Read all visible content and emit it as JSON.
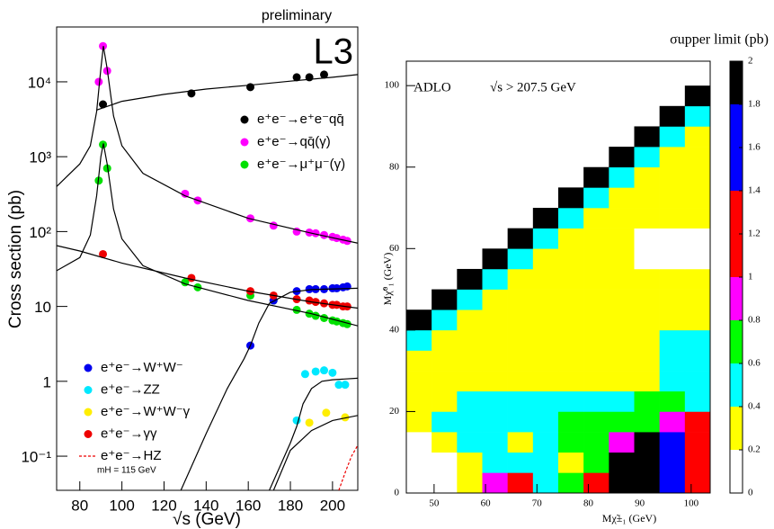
{
  "chart_data": [
    {
      "type": "scatter",
      "annotations": [
        "preliminary",
        "L3",
        "mH = 115 GeV"
      ],
      "xlabel": "√s (GeV)",
      "ylabel": "Cross section (pb)",
      "xlim": [
        69,
        212
      ],
      "ylim": [
        0.035,
        54000
      ],
      "log_y": true,
      "xticks": [
        80,
        100,
        120,
        140,
        160,
        180,
        200
      ],
      "yticks": [
        {
          "value": 0.1,
          "label": "10⁻¹"
        },
        1,
        10,
        {
          "value": 100,
          "label": "10²"
        },
        {
          "value": 1000,
          "label": "10³"
        },
        {
          "value": 10000,
          "label": "10⁴"
        }
      ],
      "series": [
        {
          "name": "e⁺e⁻→e⁺e⁻qq̄",
          "color": "#000000",
          "mode": "markers",
          "legend": "upper right",
          "x": [
            91,
            133,
            161,
            183,
            189,
            196
          ],
          "values": [
            5000,
            7000,
            8500,
            11500,
            11500,
            12500
          ]
        },
        {
          "name": "e⁺e⁻→qq̄(γ)",
          "color": "#ff00ff",
          "mode": "markers",
          "legend": "upper right",
          "x": [
            89,
            91,
            93,
            130,
            136,
            161,
            172,
            183,
            189,
            192,
            196,
            200,
            202,
            205,
            207
          ],
          "values": [
            10000,
            30000,
            14000,
            320,
            260,
            150,
            120,
            100,
            97,
            95,
            90,
            85,
            82,
            78,
            75
          ]
        },
        {
          "name": "e⁺e⁻→μ⁺μ⁻(γ)",
          "color": "#00e000",
          "mode": "markers",
          "legend": "upper right",
          "x": [
            89,
            91,
            93,
            130,
            136,
            161,
            172,
            183,
            189,
            192,
            196,
            200,
            202,
            205,
            207
          ],
          "values": [
            480,
            1450,
            700,
            21,
            18,
            14,
            12,
            9,
            8,
            7.5,
            7,
            6.5,
            6.3,
            6,
            5.8
          ]
        },
        {
          "name": "e⁺e⁻→W⁺W⁻",
          "color": "#0000ee",
          "mode": "markers",
          "legend": "lower left",
          "x": [
            161,
            172,
            183,
            189,
            192,
            196,
            200,
            202,
            205,
            207
          ],
          "values": [
            3,
            12,
            16,
            17,
            17,
            17,
            17.5,
            17.5,
            18,
            18.5
          ]
        },
        {
          "name": "e⁺e⁻→ZZ",
          "color": "#00e8ff",
          "mode": "markers",
          "legend": "lower left",
          "x": [
            183,
            187,
            192,
            196,
            200,
            203,
            206
          ],
          "values": [
            0.3,
            1.25,
            1.35,
            1.4,
            1.3,
            0.9,
            0.9
          ]
        },
        {
          "name": "e⁺e⁻→W⁺W⁻γ",
          "color": "#ffee00",
          "mode": "markers",
          "legend": "lower left",
          "x": [
            189,
            197,
            206
          ],
          "values": [
            0.28,
            0.38,
            0.33
          ]
        },
        {
          "name": "e⁺e⁻→γγ",
          "color": "#ee0000",
          "mode": "markers",
          "legend": "lower left",
          "x": [
            91,
            133,
            161,
            172,
            183,
            189,
            192,
            196,
            200,
            202,
            205,
            207
          ],
          "values": [
            50,
            24,
            16,
            14,
            12.5,
            12,
            11.5,
            11,
            10.5,
            10.5,
            10,
            10
          ]
        },
        {
          "name": "e⁺e⁻→HZ",
          "color": "#ee0000",
          "mode": "lines",
          "dash": true,
          "legend": "lower left",
          "x": [
            203,
            206,
            209,
            212
          ],
          "values": [
            0.035,
            0.06,
            0.1,
            0.14
          ]
        },
        {
          "color": "#000000",
          "mode": "lines",
          "x": [
            88,
            100,
            120,
            140,
            160,
            180,
            200,
            212
          ],
          "values": [
            4200,
            5500,
            6800,
            8000,
            9000,
            10200,
            11500,
            12500
          ]
        },
        {
          "color": "#000000",
          "mode": "lines",
          "x": [
            69,
            80,
            85,
            88,
            90,
            91.2,
            93,
            96,
            100,
            110,
            130,
            160,
            190,
            212
          ],
          "values": [
            400,
            800,
            1400,
            4000,
            15000,
            30000,
            15000,
            3500,
            1400,
            600,
            300,
            150,
            95,
            70
          ]
        },
        {
          "color": "#000000",
          "mode": "lines",
          "x": [
            69,
            80,
            85,
            88,
            90,
            91.2,
            93,
            96,
            100,
            110,
            130,
            160,
            190,
            212
          ],
          "values": [
            30,
            45,
            90,
            300,
            1000,
            1500,
            800,
            200,
            80,
            35,
            20,
            12,
            8,
            5.5
          ]
        },
        {
          "color": "#000000",
          "mode": "lines",
          "x": [
            69,
            80,
            100,
            130,
            160,
            190,
            212
          ],
          "values": [
            65,
            55,
            38,
            24,
            16,
            11.5,
            9.5
          ]
        },
        {
          "color": "#000000",
          "mode": "lines",
          "x": [
            128,
            140,
            150,
            158,
            161,
            165,
            170,
            180,
            190,
            212
          ],
          "values": [
            0.035,
            0.2,
            0.8,
            2,
            3,
            6,
            11,
            15.5,
            16.8,
            17.5
          ]
        },
        {
          "color": "#000000",
          "mode": "lines",
          "x": [
            170,
            180,
            183,
            186,
            190,
            195,
            200,
            212
          ],
          "values": [
            0.035,
            0.15,
            0.25,
            0.5,
            0.8,
            1,
            1.05,
            1.1
          ]
        },
        {
          "color": "#000000",
          "mode": "lines",
          "x": [
            172,
            180,
            190,
            200,
            212
          ],
          "values": [
            0.035,
            0.12,
            0.22,
            0.3,
            0.35
          ]
        }
      ]
    },
    {
      "type": "heatmap",
      "annotations": [
        "ADLO",
        "√s > 207.5 GeV"
      ],
      "colorbar_label": "σupper limit (pb)",
      "xlabel": "Mχ̃±₁ (GeV)",
      "ylabel": "Mχ̃⁰₁ (GeV)",
      "xlim": [
        44.6,
        103.7
      ],
      "ylim": [
        0,
        106
      ],
      "xticks": [
        50,
        60,
        70,
        80,
        90,
        100
      ],
      "yticks": [
        0,
        20,
        40,
        60,
        80,
        100
      ],
      "zlim": [
        0,
        2
      ],
      "zticks": [
        0,
        0.2,
        0.4,
        0.6,
        0.8,
        1,
        1.2,
        1.4,
        1.6,
        1.8,
        2
      ],
      "palette": [
        "#ffffff",
        "#ffff00",
        "#00ffff",
        "#00ff00",
        "#ff00ff",
        "#ff0000",
        "#ff0000",
        "#0000ff",
        "#0000ff",
        "#000000"
      ],
      "xbins": [
        44.6,
        49.525,
        54.45,
        59.375,
        64.3,
        69.225,
        74.15,
        79.075,
        84.0,
        88.925,
        93.85,
        98.775,
        103.7
      ],
      "ybins": [
        0,
        5,
        10,
        15,
        20,
        25,
        30,
        35,
        40,
        45,
        50,
        55,
        60,
        65,
        70,
        75,
        80,
        85,
        90,
        95,
        100,
        105
      ],
      "z": [
        [
          0.1,
          0.1,
          0.3,
          0.9,
          1.1,
          0.5,
          0.7,
          1.1,
          1.9,
          1.9,
          1.5,
          1.1
        ],
        [
          0.1,
          0.1,
          0.3,
          0.5,
          0.5,
          0.5,
          0.3,
          0.7,
          1.9,
          1.9,
          1.5,
          1.1
        ],
        [
          0.1,
          0.3,
          0.5,
          0.5,
          0.3,
          0.5,
          0.7,
          0.7,
          0.9,
          1.9,
          1.5,
          1.1
        ],
        [
          0.3,
          0.5,
          0.5,
          0.5,
          0.5,
          0.5,
          0.7,
          0.7,
          0.7,
          0.7,
          0.9,
          1.1
        ],
        [
          0.3,
          0.3,
          0.5,
          0.5,
          0.5,
          0.5,
          0.5,
          0.5,
          0.5,
          0.7,
          0.7,
          0.5
        ],
        [
          0.3,
          0.3,
          0.3,
          0.3,
          0.3,
          0.3,
          0.3,
          0.3,
          0.3,
          0.3,
          0.5,
          0.5
        ],
        [
          0.3,
          0.3,
          0.3,
          0.3,
          0.3,
          0.3,
          0.3,
          0.3,
          0.3,
          0.3,
          0.5,
          0.5
        ],
        [
          0.5,
          0.3,
          0.3,
          0.3,
          0.3,
          0.3,
          0.3,
          0.3,
          0.3,
          0.3,
          0.5,
          0.5
        ],
        [
          1.9,
          0.5,
          0.3,
          0.3,
          0.3,
          0.3,
          0.3,
          0.3,
          0.3,
          0.3,
          0.3,
          0.3
        ],
        [
          null,
          1.9,
          0.5,
          0.3,
          0.3,
          0.3,
          0.3,
          0.3,
          0.3,
          0.3,
          0.3,
          0.3
        ],
        [
          null,
          null,
          1.9,
          0.5,
          0.3,
          0.3,
          0.3,
          0.3,
          0.3,
          0.3,
          0.3,
          0.3
        ],
        [
          null,
          null,
          null,
          1.9,
          0.5,
          0.3,
          0.3,
          0.3,
          0.3,
          0.1,
          0.1,
          0.1
        ],
        [
          null,
          null,
          null,
          null,
          1.9,
          0.5,
          0.3,
          0.3,
          0.3,
          0.1,
          0.1,
          0.1
        ],
        [
          null,
          null,
          null,
          null,
          null,
          1.9,
          0.5,
          0.3,
          0.3,
          0.3,
          0.3,
          0.3
        ],
        [
          null,
          null,
          null,
          null,
          null,
          null,
          1.9,
          0.5,
          0.3,
          0.3,
          0.3,
          0.3
        ],
        [
          null,
          null,
          null,
          null,
          null,
          null,
          null,
          1.9,
          0.5,
          0.3,
          0.3,
          0.3
        ],
        [
          null,
          null,
          null,
          null,
          null,
          null,
          null,
          null,
          1.9,
          0.5,
          0.3,
          0.3
        ],
        [
          null,
          null,
          null,
          null,
          null,
          null,
          null,
          null,
          null,
          1.9,
          0.5,
          0.3
        ],
        [
          null,
          null,
          null,
          null,
          null,
          null,
          null,
          null,
          null,
          null,
          1.9,
          0.5
        ],
        [
          null,
          null,
          null,
          null,
          null,
          null,
          null,
          null,
          null,
          null,
          null,
          1.9
        ],
        [
          null,
          null,
          null,
          null,
          null,
          null,
          null,
          null,
          null,
          null,
          null,
          null
        ]
      ]
    }
  ]
}
